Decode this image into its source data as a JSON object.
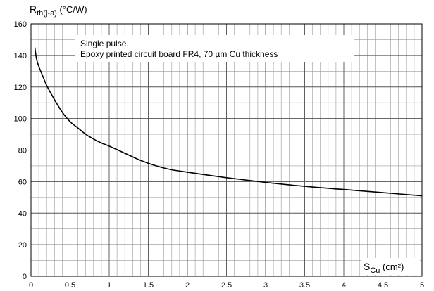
{
  "chart_data": {
    "type": "line",
    "xlim": [
      0,
      5
    ],
    "ylim": [
      0,
      160
    ],
    "x_major_step": 0.5,
    "x_minor_step": 0.1,
    "y_major_step": 20,
    "y_minor_step": 10,
    "grid": true,
    "x_ticks": [
      "0",
      "0.5",
      "1",
      "1.5",
      "2",
      "2.5",
      "3",
      "3.5",
      "4",
      "4.5",
      "5"
    ],
    "y_ticks": [
      "0",
      "20",
      "40",
      "60",
      "80",
      "100",
      "120",
      "140",
      "160"
    ],
    "ylabel": {
      "main": "R",
      "sub": "th(j-a)",
      "unit": " (°C/W)"
    },
    "xlabel": {
      "main": "S",
      "sub": "Cu",
      "unit": " (cm²)"
    },
    "annotation": [
      "Single pulse.",
      "Epoxy printed circuit board FR4, 70 µm Cu thickness"
    ],
    "series": [
      {
        "color": "#000000",
        "x": [
          0.05,
          0.07,
          0.1,
          0.15,
          0.2,
          0.3,
          0.4,
          0.5,
          0.6,
          0.7,
          0.8,
          0.9,
          1.0,
          1.2,
          1.4,
          1.6,
          1.8,
          2.0,
          2.5,
          3.0,
          3.5,
          4.0,
          4.5,
          5.0
        ],
        "y": [
          145,
          138,
          133,
          127,
          121,
          112,
          104,
          98,
          94,
          90,
          87,
          84.5,
          82.5,
          78,
          73.5,
          70,
          67.5,
          66,
          62.5,
          59.5,
          57,
          55,
          53,
          51
        ]
      }
    ]
  }
}
